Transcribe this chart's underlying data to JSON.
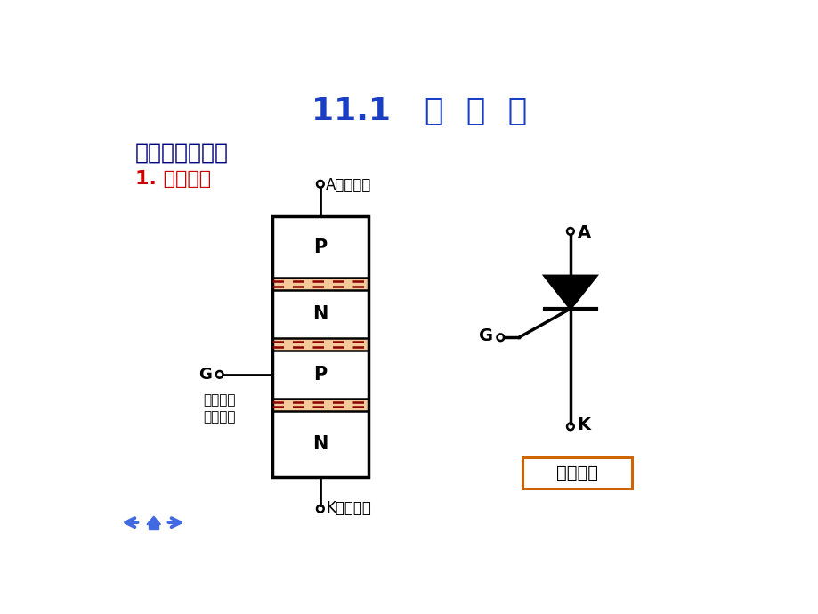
{
  "title": "11.1   晶  闸  管",
  "title_color": "#1a3fc4",
  "title_fontsize": 26,
  "subtitle1": "一、普通晶闸管",
  "subtitle1_color": "#000080",
  "subtitle1_fontsize": 18,
  "subtitle2": "1. 基本结构",
  "subtitle2_color": "#cc0000",
  "subtitle2_fontsize": 16,
  "bg_color": "#ffffff",
  "layer_labels": [
    "P",
    "N",
    "P",
    "N"
  ],
  "junction_color": "#f5c89a",
  "dashed_color": "#8b0000",
  "box_border_color": "#000000",
  "label_A_left": "A（阳极）",
  "label_K_left": "K（阴极）",
  "label_G_left": "G",
  "label_G_sub1": "（控制极",
  "label_G_sub2": "或门极）",
  "label_A_right": "A",
  "label_K_right": "K",
  "label_G_right": "G",
  "symbol_box_label": "图形符号",
  "symbol_box_color": "#cc6600",
  "nav_arrow_color": "#4169e1"
}
